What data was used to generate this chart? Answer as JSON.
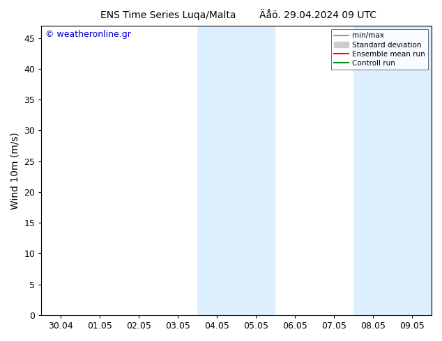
{
  "title_left": "ENS Time Series Luqa/Malta",
  "title_right": "Äåö. 29.04.2024 09 UTC",
  "ylabel": "Wind 10m (m/s)",
  "watermark": "© weatheronline.gr",
  "ylim": [
    0,
    47
  ],
  "yticks": [
    0,
    5,
    10,
    15,
    20,
    25,
    30,
    35,
    40,
    45
  ],
  "x_tick_labels": [
    "30.04",
    "01.05",
    "02.05",
    "03.05",
    "04.05",
    "05.05",
    "06.05",
    "07.05",
    "08.05",
    "09.05"
  ],
  "x_tick_positions": [
    0,
    1,
    2,
    3,
    4,
    5,
    6,
    7,
    8,
    9
  ],
  "xlim": [
    -0.5,
    9.5
  ],
  "shade_regions": [
    [
      3.5,
      4.5
    ],
    [
      4.5,
      5.5
    ],
    [
      7.5,
      8.5
    ],
    [
      8.5,
      9.5
    ]
  ],
  "shade_color": "#ddeeff",
  "background_color": "#ffffff",
  "plot_bg_color": "#ffffff",
  "legend_items": [
    {
      "label": "min/max",
      "type": "line",
      "color": "#999999",
      "lw": 1.5
    },
    {
      "label": "Standard deviation",
      "type": "box",
      "color": "#cccccc",
      "lw": 6
    },
    {
      "label": "Ensemble mean run",
      "type": "line",
      "color": "#ff0000",
      "lw": 1.5
    },
    {
      "label": "Controll run",
      "type": "line",
      "color": "#008800",
      "lw": 1.5
    }
  ],
  "title_fontsize": 10,
  "watermark_fontsize": 9,
  "watermark_color": "#0000cc",
  "ylabel_fontsize": 10,
  "tick_fontsize": 9
}
